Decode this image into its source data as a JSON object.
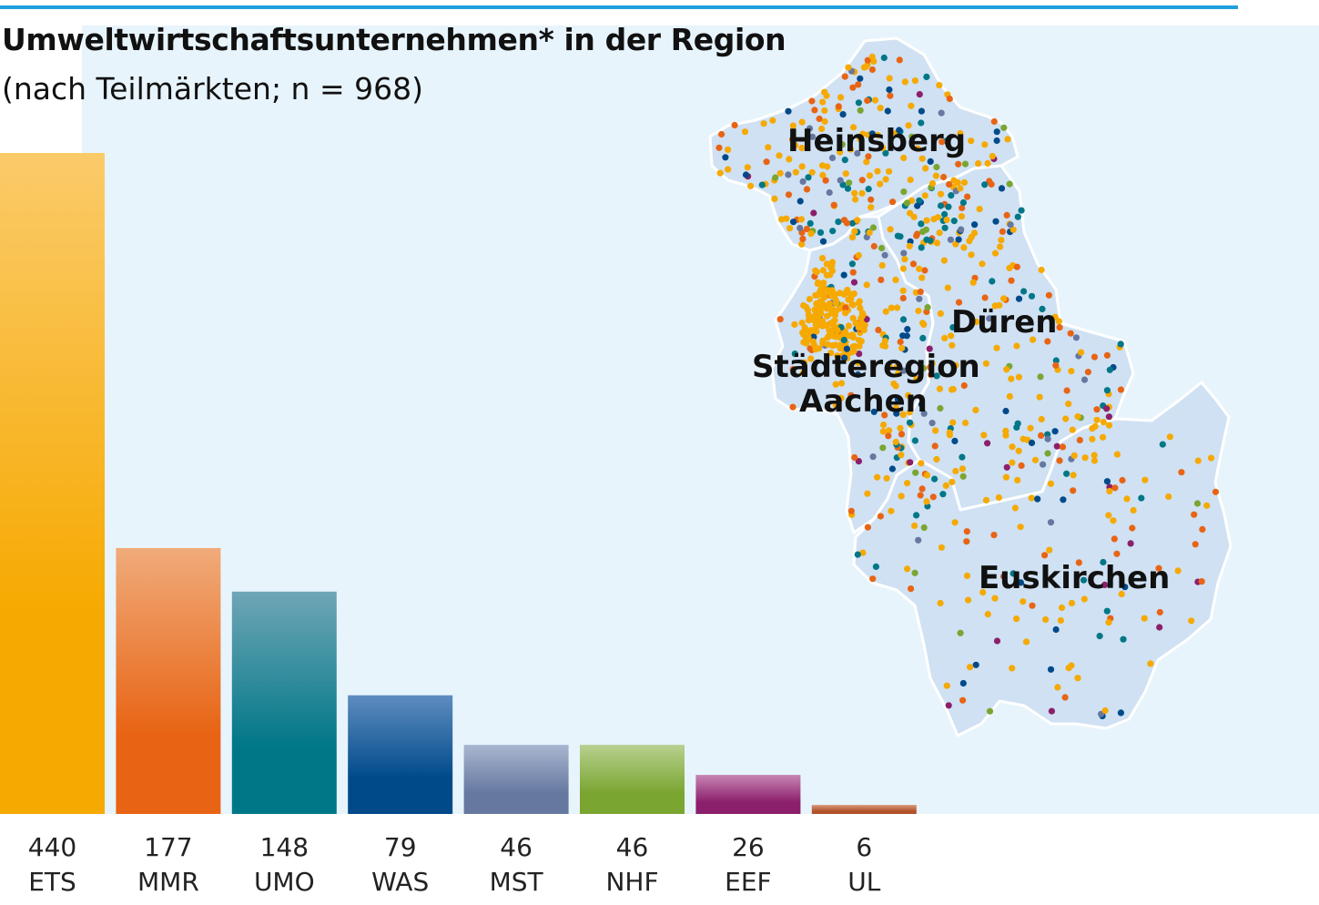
{
  "title": "Umweltwirtschaftsunternehmen* in der Region",
  "subtitle": "(nach Teilmärkten; n = 968)",
  "map": {
    "regions": [
      {
        "label": "Heinsberg"
      },
      {
        "label": "Düren"
      },
      {
        "label": "Städteregion",
        "label2": "Aachen"
      },
      {
        "label": "Euskirchen"
      }
    ]
  },
  "colors": {
    "accent_rule": "#1ea0dc",
    "panel_bg": "#e8f4fc",
    "map_fill": "#cfe1f3"
  },
  "chart_data": {
    "type": "bar",
    "title": "Umweltwirtschaftsunternehmen* in der Region",
    "subtitle": "(nach Teilmärkten; n = 968)",
    "xlabel": "",
    "ylabel": "",
    "ylim": [
      0,
      440
    ],
    "grid": false,
    "categories": [
      "ETS",
      "MMR",
      "UMO",
      "WAS",
      "MST",
      "NHF",
      "EEF",
      "UL"
    ],
    "values": [
      440,
      177,
      148,
      79,
      46,
      46,
      26,
      6
    ],
    "colors": [
      [
        "#fbcb6a",
        "#f6a900"
      ],
      [
        "#f0ab7a",
        "#e86414"
      ],
      [
        "#6fa6b6",
        "#007787"
      ],
      [
        "#5e8cc0",
        "#004a8a"
      ],
      [
        "#a9b6d0",
        "#6678a0"
      ],
      [
        "#b8d08e",
        "#7aa531"
      ],
      [
        "#c685b4",
        "#8c1f6c"
      ],
      [
        "#d8987a",
        "#b0522a"
      ]
    ]
  }
}
